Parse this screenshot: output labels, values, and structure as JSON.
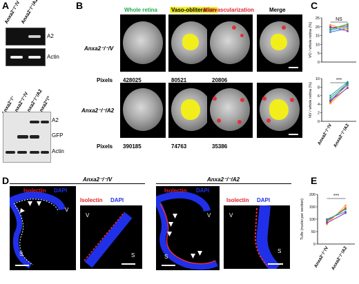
{
  "panels": {
    "A": "A",
    "B": "B",
    "C": "C",
    "D": "D",
    "E": "E"
  },
  "A": {
    "gel_lanes": [
      "Anxa2⁻/⁻/V",
      "Anxa2⁻/⁻/A2"
    ],
    "gel_rows": [
      "A2",
      "Actin"
    ],
    "wb_lanes": [
      "Anxa2⁻/⁻",
      "Anxa2⁻/⁻/V",
      "Anxa2⁻/⁻/A2",
      "Anxa2⁺/⁺"
    ],
    "wb_rows": [
      "A2",
      "GFP",
      "Actin"
    ]
  },
  "B": {
    "columns": [
      "Whole retina",
      "Vaso-obliteration",
      "Neovascularization",
      "Merge"
    ],
    "column_colors": [
      "#22a84a",
      "#000000",
      "#e0202a",
      "#000000"
    ],
    "row1_label": "Anxa2⁻/⁻/V",
    "row2_label": "Anxa2⁻/⁻/A2",
    "pixels_label": "Pixels",
    "row1_pixels": [
      "428025",
      "80521",
      "20806"
    ],
    "row2_pixels": [
      "390185",
      "74763",
      "35386"
    ]
  },
  "C": {
    "ns_label": "NS",
    "sig_label": "***",
    "ylabel_top": "VO / whole retina (%)",
    "ylabel_bottom": "NV / whole retina (%)",
    "xlabels": [
      "Anxa2⁻/⁻/V",
      "Anxa2⁻/⁻/A2"
    ],
    "top_ticks": [
      "0",
      "5",
      "10",
      "15",
      "20",
      "25"
    ],
    "bottom_ticks": [
      "0",
      "2",
      "4",
      "6",
      "8",
      "10"
    ]
  },
  "D": {
    "group1": "Anxa2⁻/⁻/V",
    "group2": "Anxa2⁻/⁻/A2",
    "isolectin": "Isolectin",
    "dapi": "DAPI",
    "v": "V",
    "s": "S"
  },
  "E": {
    "ylabel": "Tufts (nuclei per section)",
    "sig_label": "***",
    "ticks": [
      "0",
      "50",
      "100",
      "150",
      "200"
    ],
    "xlabels": [
      "Anxa2⁻/⁻/V",
      "Anxa2⁻/⁻/A2"
    ]
  },
  "chart_data": [
    {
      "type": "line",
      "ylabel": "VO / whole retina (%)",
      "categories": [
        "Anxa2⁻/⁻/V",
        "Anxa2⁻/⁻/A2"
      ],
      "ylim": [
        0,
        25
      ],
      "series": [
        {
          "values": [
            19.5,
            20.5
          ]
        },
        {
          "values": [
            17.0,
            19.0
          ]
        },
        {
          "values": [
            21.0,
            18.5
          ]
        },
        {
          "values": [
            18.5,
            21.5
          ]
        },
        {
          "values": [
            20.0,
            17.5
          ]
        },
        {
          "values": [
            18.0,
            20.0
          ]
        }
      ]
    },
    {
      "type": "line",
      "ylabel": "NV / whole retina (%)",
      "categories": [
        "Anxa2⁻/⁻/V",
        "Anxa2⁻/⁻/A2"
      ],
      "ylim": [
        0,
        10
      ],
      "series": [
        {
          "values": [
            4.5,
            9.0
          ]
        },
        {
          "values": [
            5.0,
            8.5
          ]
        },
        {
          "values": [
            4.2,
            8.0
          ]
        },
        {
          "values": [
            5.5,
            8.8
          ]
        },
        {
          "values": [
            4.8,
            7.8
          ]
        },
        {
          "values": [
            6.0,
            9.2
          ]
        }
      ]
    },
    {
      "type": "line",
      "ylabel": "Tufts (nuclei per section)",
      "categories": [
        "Anxa2⁻/⁻/V",
        "Anxa2⁻/⁻/A2"
      ],
      "ylim": [
        0,
        200
      ],
      "series": [
        {
          "values": [
            90,
            145
          ]
        },
        {
          "values": [
            100,
            130
          ]
        },
        {
          "values": [
            80,
            155
          ]
        },
        {
          "values": [
            95,
            140
          ]
        },
        {
          "values": [
            85,
            125
          ]
        }
      ]
    }
  ]
}
